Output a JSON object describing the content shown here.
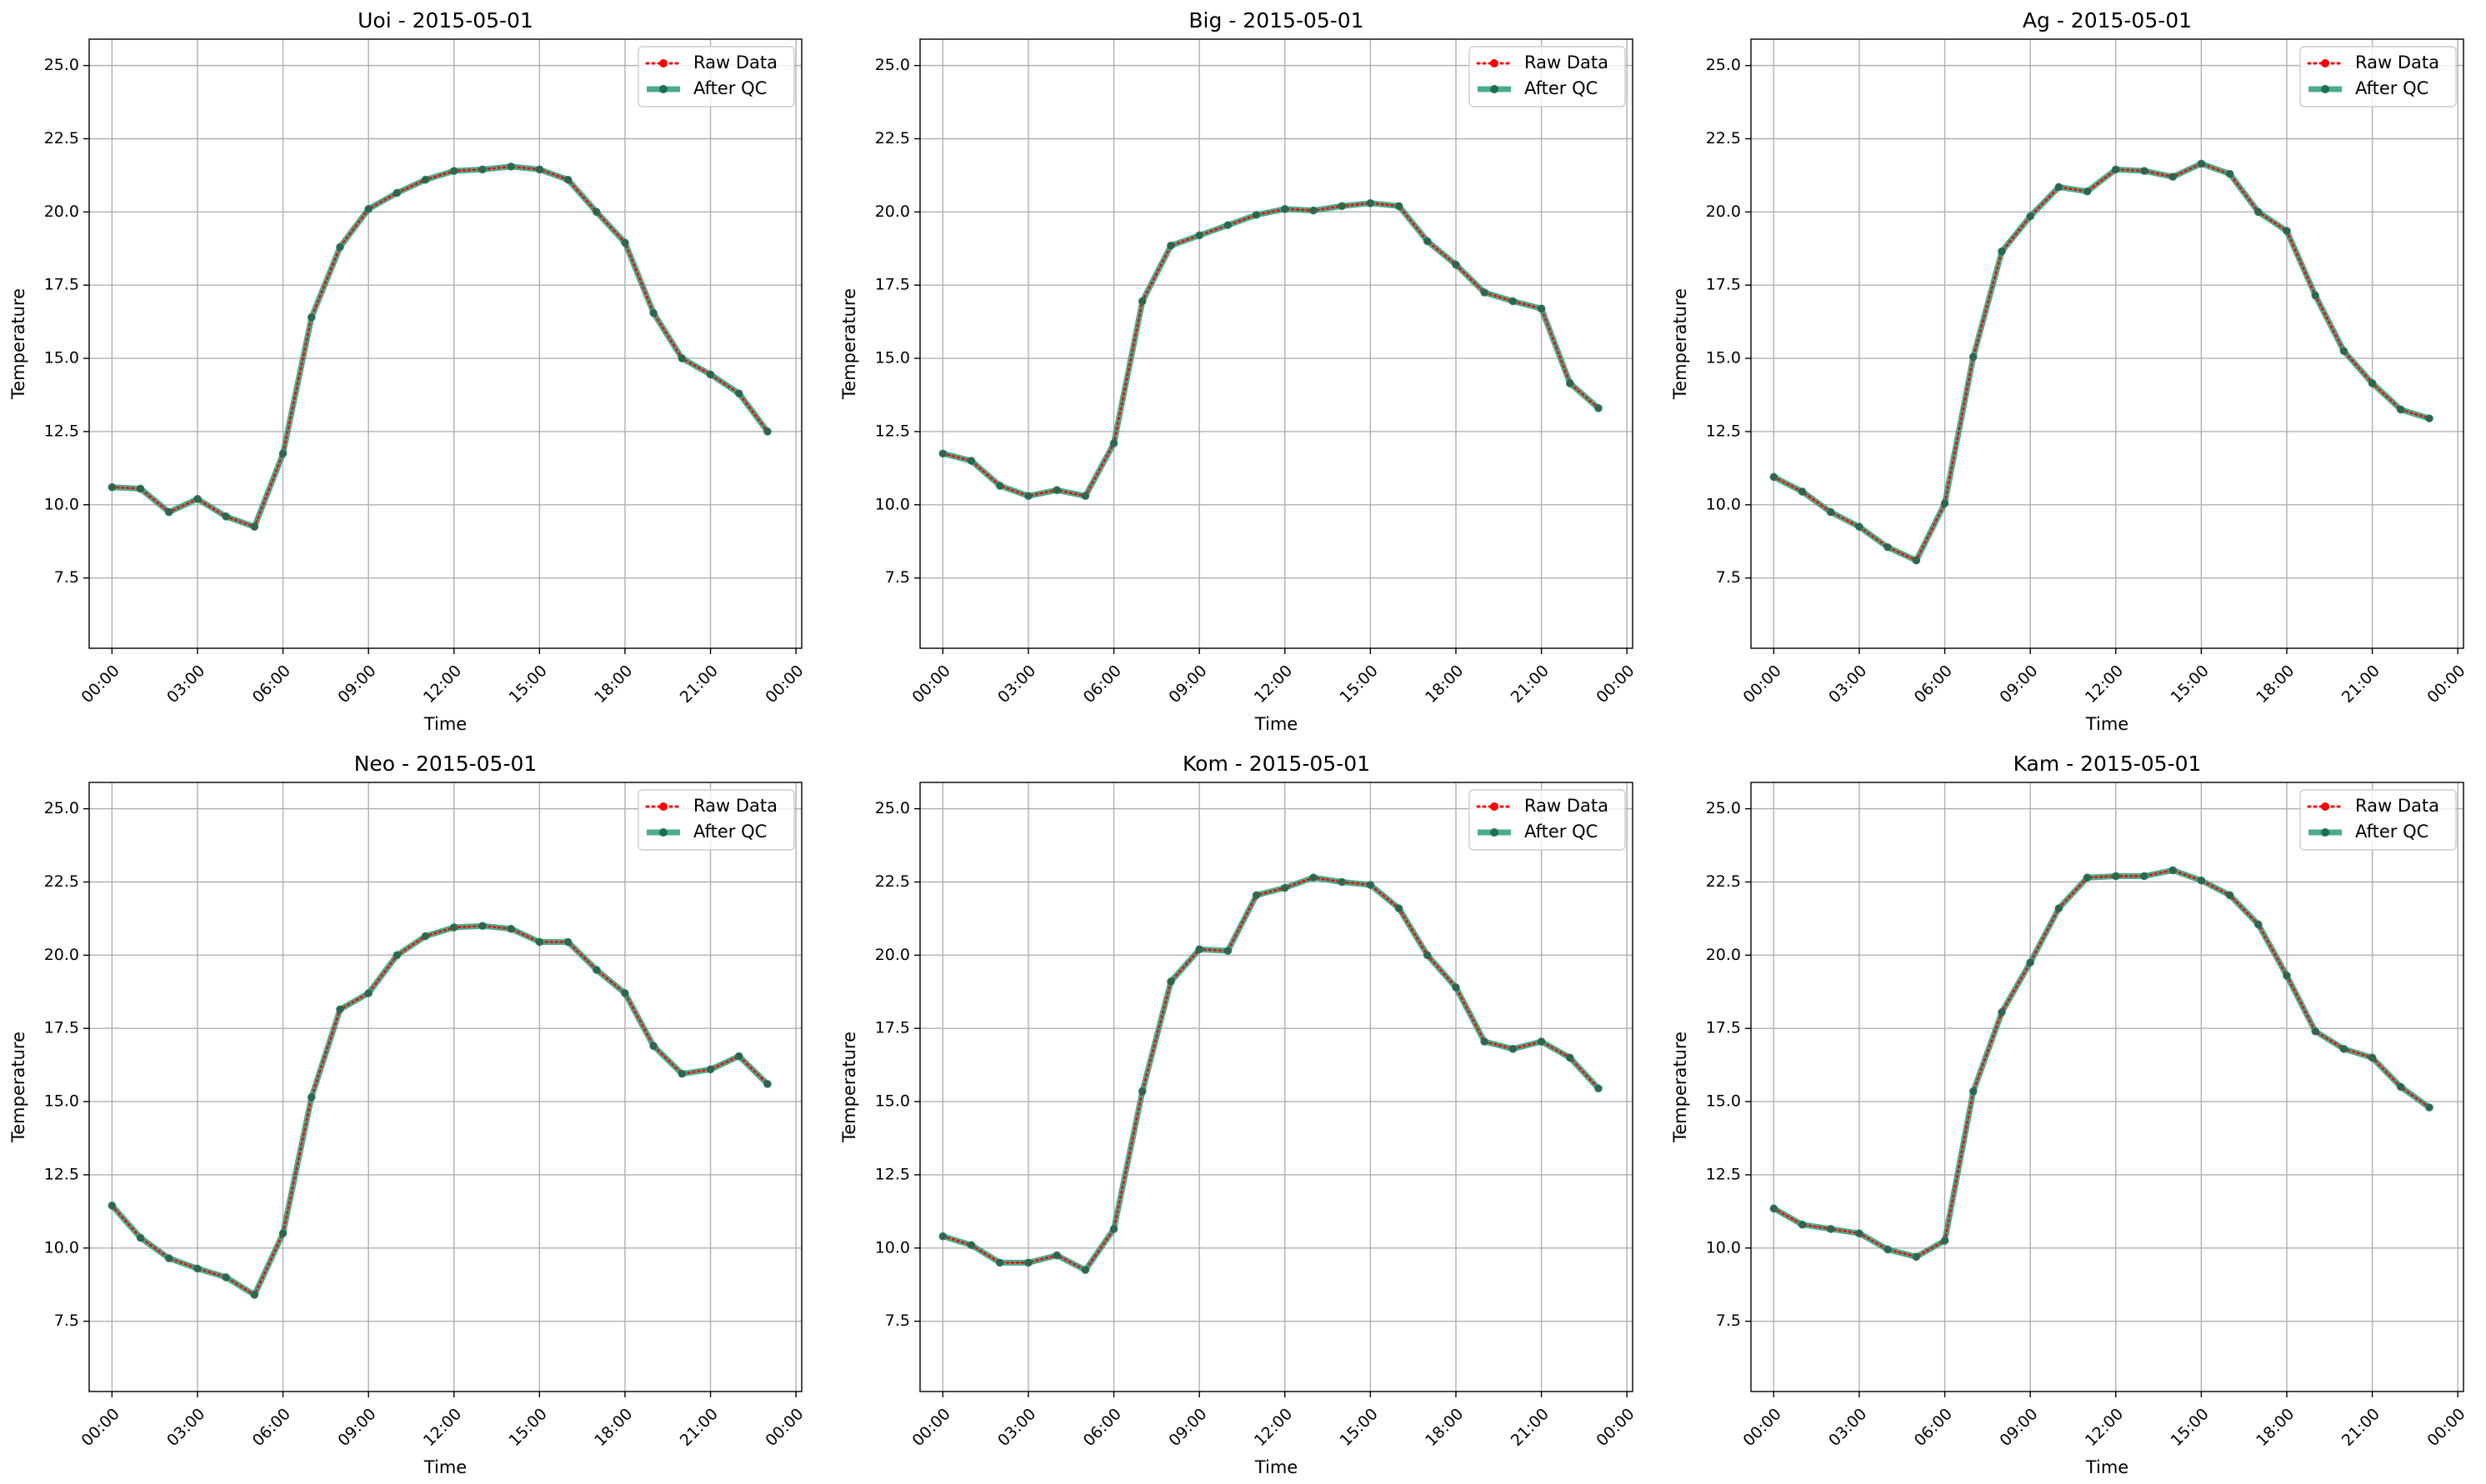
{
  "chart_data": [
    {
      "type": "line",
      "title": "Uoi - 2015-05-01",
      "xlabel": "Time",
      "ylabel": "Temperature",
      "xlim": [
        -0.8,
        24.2
      ],
      "ylim": [
        5.1,
        25.9
      ],
      "xticks": [
        0,
        3,
        6,
        9,
        12,
        15,
        18,
        21,
        24
      ],
      "xtick_labels": [
        "00:00",
        "03:00",
        "06:00",
        "09:00",
        "12:00",
        "15:00",
        "18:00",
        "21:00",
        "00:00"
      ],
      "yticks": [
        7.5,
        10.0,
        12.5,
        15.0,
        17.5,
        20.0,
        22.5,
        25.0
      ],
      "ytick_labels": [
        "7.5",
        "10.0",
        "12.5",
        "15.0",
        "17.5",
        "20.0",
        "22.5",
        "25.0"
      ],
      "x": [
        0,
        1,
        2,
        3,
        4,
        5,
        6,
        7,
        8,
        9,
        10,
        11,
        12,
        13,
        14,
        15,
        16,
        17,
        18,
        19,
        20,
        21,
        22,
        23
      ],
      "series": [
        {
          "name": "Raw Data",
          "values": [
            10.6,
            10.55,
            9.75,
            10.2,
            9.6,
            9.25,
            11.75,
            16.4,
            18.8,
            20.1,
            20.65,
            21.1,
            21.4,
            21.45,
            21.55,
            21.45,
            21.1,
            20.0,
            18.95,
            16.55,
            15.0,
            14.45,
            13.8,
            12.5
          ]
        },
        {
          "name": "After QC",
          "values": [
            10.6,
            10.55,
            9.75,
            10.2,
            9.6,
            9.25,
            11.75,
            16.4,
            18.8,
            20.1,
            20.65,
            21.1,
            21.4,
            21.45,
            21.55,
            21.45,
            21.1,
            20.0,
            18.95,
            16.55,
            15.0,
            14.45,
            13.8,
            12.5
          ]
        }
      ],
      "legend": "upper right",
      "grid": true
    },
    {
      "type": "line",
      "title": "Big - 2015-05-01",
      "xlabel": "Time",
      "ylabel": "Temperature",
      "xlim": [
        -0.8,
        24.2
      ],
      "ylim": [
        5.1,
        25.9
      ],
      "xticks": [
        0,
        3,
        6,
        9,
        12,
        15,
        18,
        21,
        24
      ],
      "xtick_labels": [
        "00:00",
        "03:00",
        "06:00",
        "09:00",
        "12:00",
        "15:00",
        "18:00",
        "21:00",
        "00:00"
      ],
      "yticks": [
        7.5,
        10.0,
        12.5,
        15.0,
        17.5,
        20.0,
        22.5,
        25.0
      ],
      "ytick_labels": [
        "7.5",
        "10.0",
        "12.5",
        "15.0",
        "17.5",
        "20.0",
        "22.5",
        "25.0"
      ],
      "x": [
        0,
        1,
        2,
        3,
        4,
        5,
        6,
        7,
        8,
        9,
        10,
        11,
        12,
        13,
        14,
        15,
        16,
        17,
        18,
        19,
        20,
        21,
        22,
        23
      ],
      "series": [
        {
          "name": "Raw Data",
          "values": [
            11.75,
            11.5,
            10.65,
            10.3,
            10.5,
            10.3,
            12.1,
            16.95,
            18.85,
            19.2,
            19.55,
            19.9,
            20.1,
            20.05,
            20.2,
            20.3,
            20.2,
            19.0,
            18.2,
            17.25,
            16.95,
            16.7,
            14.15,
            13.3
          ]
        },
        {
          "name": "After QC",
          "values": [
            11.75,
            11.5,
            10.65,
            10.3,
            10.5,
            10.3,
            12.1,
            16.95,
            18.85,
            19.2,
            19.55,
            19.9,
            20.1,
            20.05,
            20.2,
            20.3,
            20.2,
            19.0,
            18.2,
            17.25,
            16.95,
            16.7,
            14.15,
            13.3
          ]
        }
      ],
      "legend": "upper right",
      "grid": true
    },
    {
      "type": "line",
      "title": "Ag - 2015-05-01",
      "xlabel": "Time",
      "ylabel": "Temperature",
      "xlim": [
        -0.8,
        24.2
      ],
      "ylim": [
        5.1,
        25.9
      ],
      "xticks": [
        0,
        3,
        6,
        9,
        12,
        15,
        18,
        21,
        24
      ],
      "xtick_labels": [
        "00:00",
        "03:00",
        "06:00",
        "09:00",
        "12:00",
        "15:00",
        "18:00",
        "21:00",
        "00:00"
      ],
      "yticks": [
        7.5,
        10.0,
        12.5,
        15.0,
        17.5,
        20.0,
        22.5,
        25.0
      ],
      "ytick_labels": [
        "7.5",
        "10.0",
        "12.5",
        "15.0",
        "17.5",
        "20.0",
        "22.5",
        "25.0"
      ],
      "x": [
        0,
        1,
        2,
        3,
        4,
        5,
        6,
        7,
        8,
        9,
        10,
        11,
        12,
        13,
        14,
        15,
        16,
        17,
        18,
        19,
        20,
        21,
        22,
        23
      ],
      "series": [
        {
          "name": "Raw Data",
          "values": [
            10.95,
            10.45,
            9.75,
            9.25,
            8.55,
            8.1,
            10.05,
            15.05,
            18.65,
            19.85,
            20.85,
            20.7,
            21.45,
            21.4,
            21.2,
            21.65,
            21.3,
            20.0,
            19.35,
            17.15,
            15.25,
            14.15,
            13.25,
            12.95
          ]
        },
        {
          "name": "After QC",
          "values": [
            10.95,
            10.45,
            9.75,
            9.25,
            8.55,
            8.1,
            10.05,
            15.05,
            18.65,
            19.85,
            20.85,
            20.7,
            21.45,
            21.4,
            21.2,
            21.65,
            21.3,
            20.0,
            19.35,
            17.15,
            15.25,
            14.15,
            13.25,
            12.95
          ]
        }
      ],
      "legend": "upper right",
      "grid": true
    },
    {
      "type": "line",
      "title": "Neo - 2015-05-01",
      "xlabel": "Time",
      "ylabel": "Temperature",
      "xlim": [
        -0.8,
        24.2
      ],
      "ylim": [
        5.1,
        25.9
      ],
      "xticks": [
        0,
        3,
        6,
        9,
        12,
        15,
        18,
        21,
        24
      ],
      "xtick_labels": [
        "00:00",
        "03:00",
        "06:00",
        "09:00",
        "12:00",
        "15:00",
        "18:00",
        "21:00",
        "00:00"
      ],
      "yticks": [
        7.5,
        10.0,
        12.5,
        15.0,
        17.5,
        20.0,
        22.5,
        25.0
      ],
      "ytick_labels": [
        "7.5",
        "10.0",
        "12.5",
        "15.0",
        "17.5",
        "20.0",
        "22.5",
        "25.0"
      ],
      "x": [
        0,
        1,
        2,
        3,
        4,
        5,
        6,
        7,
        8,
        9,
        10,
        11,
        12,
        13,
        14,
        15,
        16,
        17,
        18,
        19,
        20,
        21,
        22,
        23
      ],
      "series": [
        {
          "name": "Raw Data",
          "values": [
            11.45,
            10.35,
            9.65,
            9.3,
            9.0,
            8.4,
            10.5,
            15.15,
            18.15,
            18.7,
            20.0,
            20.65,
            20.95,
            21.0,
            20.9,
            20.45,
            20.45,
            19.5,
            18.7,
            16.9,
            15.95,
            16.1,
            16.55,
            15.6
          ]
        },
        {
          "name": "After QC",
          "values": [
            11.45,
            10.35,
            9.65,
            9.3,
            9.0,
            8.4,
            10.5,
            15.15,
            18.15,
            18.7,
            20.0,
            20.65,
            20.95,
            21.0,
            20.9,
            20.45,
            20.45,
            19.5,
            18.7,
            16.9,
            15.95,
            16.1,
            16.55,
            15.6
          ]
        }
      ],
      "legend": "upper right",
      "grid": true
    },
    {
      "type": "line",
      "title": "Kom - 2015-05-01",
      "xlabel": "Time",
      "ylabel": "Temperature",
      "xlim": [
        -0.8,
        24.2
      ],
      "ylim": [
        5.1,
        25.9
      ],
      "xticks": [
        0,
        3,
        6,
        9,
        12,
        15,
        18,
        21,
        24
      ],
      "xtick_labels": [
        "00:00",
        "03:00",
        "06:00",
        "09:00",
        "12:00",
        "15:00",
        "18:00",
        "21:00",
        "00:00"
      ],
      "yticks": [
        7.5,
        10.0,
        12.5,
        15.0,
        17.5,
        20.0,
        22.5,
        25.0
      ],
      "ytick_labels": [
        "7.5",
        "10.0",
        "12.5",
        "15.0",
        "17.5",
        "20.0",
        "22.5",
        "25.0"
      ],
      "x": [
        0,
        1,
        2,
        3,
        4,
        5,
        6,
        7,
        8,
        9,
        10,
        11,
        12,
        13,
        14,
        15,
        16,
        17,
        18,
        19,
        20,
        21,
        22,
        23
      ],
      "series": [
        {
          "name": "Raw Data",
          "values": [
            10.4,
            10.1,
            9.5,
            9.5,
            9.75,
            9.25,
            10.65,
            15.35,
            19.1,
            20.2,
            20.15,
            22.05,
            22.3,
            22.65,
            22.5,
            22.4,
            21.6,
            20.0,
            18.9,
            17.05,
            16.8,
            17.05,
            16.5,
            15.45
          ]
        },
        {
          "name": "After QC",
          "values": [
            10.4,
            10.1,
            9.5,
            9.5,
            9.75,
            9.25,
            10.65,
            15.35,
            19.1,
            20.2,
            20.15,
            22.05,
            22.3,
            22.65,
            22.5,
            22.4,
            21.6,
            20.0,
            18.9,
            17.05,
            16.8,
            17.05,
            16.5,
            15.45
          ]
        }
      ],
      "legend": "upper right",
      "grid": true
    },
    {
      "type": "line",
      "title": "Kam - 2015-05-01",
      "xlabel": "Time",
      "ylabel": "Temperature",
      "xlim": [
        -0.8,
        24.2
      ],
      "ylim": [
        5.1,
        25.9
      ],
      "xticks": [
        0,
        3,
        6,
        9,
        12,
        15,
        18,
        21,
        24
      ],
      "xtick_labels": [
        "00:00",
        "03:00",
        "06:00",
        "09:00",
        "12:00",
        "15:00",
        "18:00",
        "21:00",
        "00:00"
      ],
      "yticks": [
        7.5,
        10.0,
        12.5,
        15.0,
        17.5,
        20.0,
        22.5,
        25.0
      ],
      "ytick_labels": [
        "7.5",
        "10.0",
        "12.5",
        "15.0",
        "17.5",
        "20.0",
        "22.5",
        "25.0"
      ],
      "x": [
        0,
        1,
        2,
        3,
        4,
        5,
        6,
        7,
        8,
        9,
        10,
        11,
        12,
        13,
        14,
        15,
        16,
        17,
        18,
        19,
        20,
        21,
        22,
        23
      ],
      "series": [
        {
          "name": "Raw Data",
          "values": [
            11.35,
            10.8,
            10.65,
            10.5,
            9.95,
            9.7,
            10.25,
            15.35,
            18.05,
            19.75,
            21.6,
            22.65,
            22.7,
            22.7,
            22.9,
            22.55,
            22.05,
            21.05,
            19.3,
            17.4,
            16.8,
            16.5,
            15.5,
            14.8
          ]
        },
        {
          "name": "After QC",
          "values": [
            11.35,
            10.8,
            10.65,
            10.5,
            9.95,
            9.7,
            10.25,
            15.35,
            18.05,
            19.75,
            21.6,
            22.65,
            22.7,
            22.7,
            22.9,
            22.55,
            22.05,
            21.05,
            19.3,
            17.4,
            16.8,
            16.5,
            15.5,
            14.8
          ]
        }
      ],
      "legend": "upper right",
      "grid": true
    }
  ],
  "colors": {
    "raw": "#ff0000",
    "qc": "#2a9d78",
    "qc_marker": "#1e6e55",
    "grid": "#b0b0b0"
  }
}
